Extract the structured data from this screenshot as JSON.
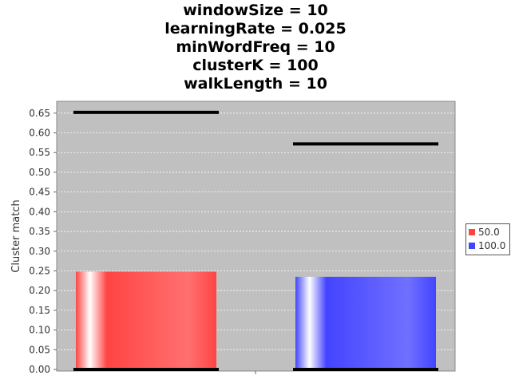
{
  "chart_data": {
    "type": "bar",
    "title_lines": [
      "windowSize = 10",
      "learningRate = 0.025",
      "minWordFreq = 10",
      "clusterK = 100",
      "walkLength = 10"
    ],
    "xlabel": "",
    "ylabel": "Cluster match",
    "ylim": [
      0,
      0.68
    ],
    "yticks": [
      "0.00",
      "0.05",
      "0.10",
      "0.15",
      "0.20",
      "0.25",
      "0.30",
      "0.35",
      "0.40",
      "0.45",
      "0.50",
      "0.55",
      "0.60",
      "0.65"
    ],
    "grid": true,
    "legend_position": "right",
    "series": [
      {
        "name": "50.0",
        "color": "#ff4444",
        "value": 0.248,
        "range": [
          0.0,
          0.652
        ]
      },
      {
        "name": "100.0",
        "color": "#4444ff",
        "value": 0.235,
        "range": [
          0.0,
          0.572
        ]
      }
    ]
  }
}
